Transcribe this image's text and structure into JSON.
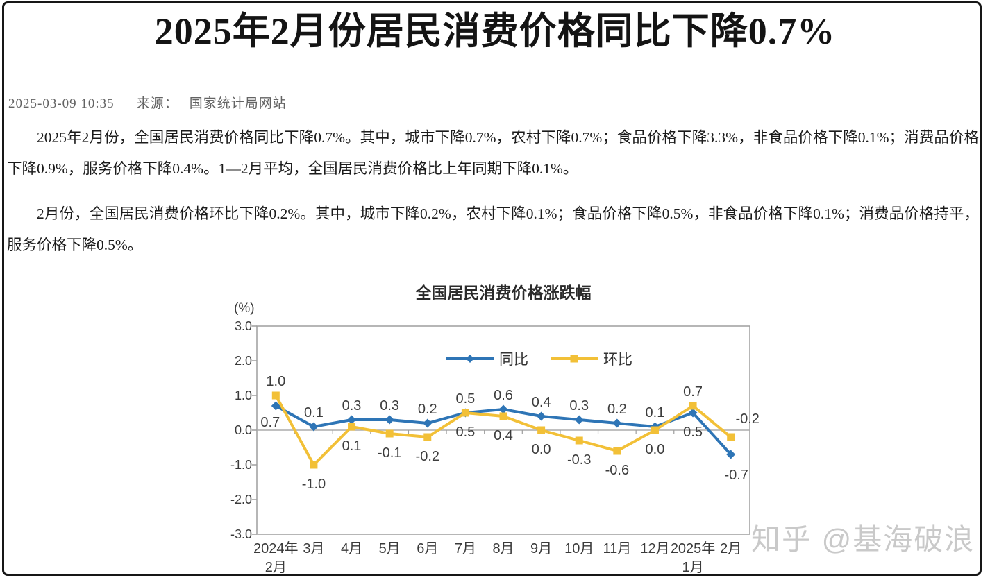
{
  "page": {
    "title": "2025年2月份居民消费价格同比下降0.7%",
    "meta": {
      "datetime": "2025-03-09 10:35",
      "source_label": "来源：",
      "source": "国家统计局网站"
    },
    "paragraphs": [
      "2025年2月份，全国居民消费价格同比下降0.7%。其中，城市下降0.7%，农村下降0.7%；食品价格下降3.3%，非食品价格下降0.1%；消费品价格下降0.9%，服务价格下降0.4%。1—2月平均，全国居民消费价格比上年同期下降0.1%。",
      "2月份，全国居民消费价格环比下降0.2%。其中，城市下降0.2%，农村下降0.1%；食品价格下降0.5%，非食品价格下降0.1%；消费品价格持平，服务价格下降0.5%。"
    ],
    "watermark": "知乎 @基海破浪"
  },
  "chart_data": {
    "type": "line",
    "title": "全国居民消费价格涨跌幅",
    "unit_label": "(%)",
    "categories": [
      [
        "2024年",
        "2月"
      ],
      [
        "3月"
      ],
      [
        "4月"
      ],
      [
        "5月"
      ],
      [
        "6月"
      ],
      [
        "7月"
      ],
      [
        "8月"
      ],
      [
        "9月"
      ],
      [
        "10月"
      ],
      [
        "11月"
      ],
      [
        "12月"
      ],
      [
        "2025年",
        "1月"
      ],
      [
        "2月"
      ]
    ],
    "series": [
      {
        "name": "同比",
        "color": "#2E75B6",
        "marker": "diamond",
        "values": [
          0.7,
          0.1,
          0.3,
          0.3,
          0.2,
          0.5,
          0.6,
          0.4,
          0.3,
          0.2,
          0.1,
          0.5,
          -0.7
        ],
        "label_pos": [
          "below-left",
          "above",
          "above",
          "above",
          "above",
          "above",
          "above",
          "above",
          "above",
          "above",
          "above",
          "below",
          "below-right"
        ]
      },
      {
        "name": "环比",
        "color": "#F2C037",
        "marker": "square",
        "values": [
          1.0,
          -1.0,
          0.1,
          -0.1,
          -0.2,
          0.5,
          0.4,
          0.0,
          -0.3,
          -0.6,
          0.0,
          0.7,
          -0.2
        ],
        "label_pos": [
          "above",
          "below",
          "below",
          "below",
          "below",
          "below",
          "below",
          "below",
          "below",
          "below",
          "below",
          "above",
          "above-right"
        ]
      }
    ],
    "ylim": [
      -3.0,
      3.0
    ],
    "yticks": [
      3.0,
      2.0,
      1.0,
      0.0,
      -1.0,
      -2.0,
      -3.0
    ],
    "grid": false,
    "legend_position": "inside-top-center",
    "axis_color": "#9e9e9e",
    "zero_line_color": "#ababab",
    "label_color": "#3d3d3d",
    "tick_label_color": "#3a3a3a",
    "title_color": "#2b2b2b"
  }
}
